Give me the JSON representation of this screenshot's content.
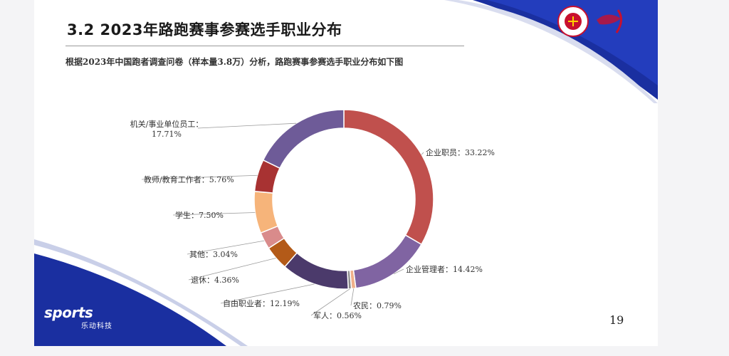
{
  "slide": {
    "title": "3.2 2023年路跑赛事参赛选手职业分布",
    "subtitle": "根据2023年中国跑者调查问卷（样本量3.8万）分析，路跑赛事参赛选手职业分布如下图",
    "page_number": "19",
    "brand": {
      "name": "sports",
      "sub": "乐动科技"
    },
    "accent_color": "#1a2fa0"
  },
  "chart_data": {
    "type": "pie",
    "style": "donut",
    "title": "",
    "slices": [
      {
        "label": "企业职员",
        "value": 33.22,
        "value_text": "33.22%",
        "color": "#c0504d"
      },
      {
        "label": "企业管理者",
        "value": 14.42,
        "value_text": "14.42%",
        "color": "#8064a2"
      },
      {
        "label": "农民",
        "value": 0.79,
        "value_text": "0.79%",
        "color": "#f0b08a"
      },
      {
        "label": "军人",
        "value": 0.56,
        "value_text": "0.56%",
        "color": "#8a8a8a"
      },
      {
        "label": "自由职业者",
        "value": 12.19,
        "value_text": "12.19%",
        "color": "#4b3a6b"
      },
      {
        "label": "退休",
        "value": 4.36,
        "value_text": "4.36%",
        "color": "#b35a18"
      },
      {
        "label": "其他",
        "value": 3.04,
        "value_text": "3.04%",
        "color": "#d98b8b"
      },
      {
        "label": "学生",
        "value": 7.5,
        "value_text": "7.50%",
        "color": "#f6b47a"
      },
      {
        "label": "教师/教育工作者",
        "value": 5.76,
        "value_text": "5.76%",
        "color": "#a83232"
      },
      {
        "label": "机关/事业单位员工",
        "value": 17.71,
        "value_text": "17.71%",
        "color": "#6e5b98"
      }
    ]
  }
}
